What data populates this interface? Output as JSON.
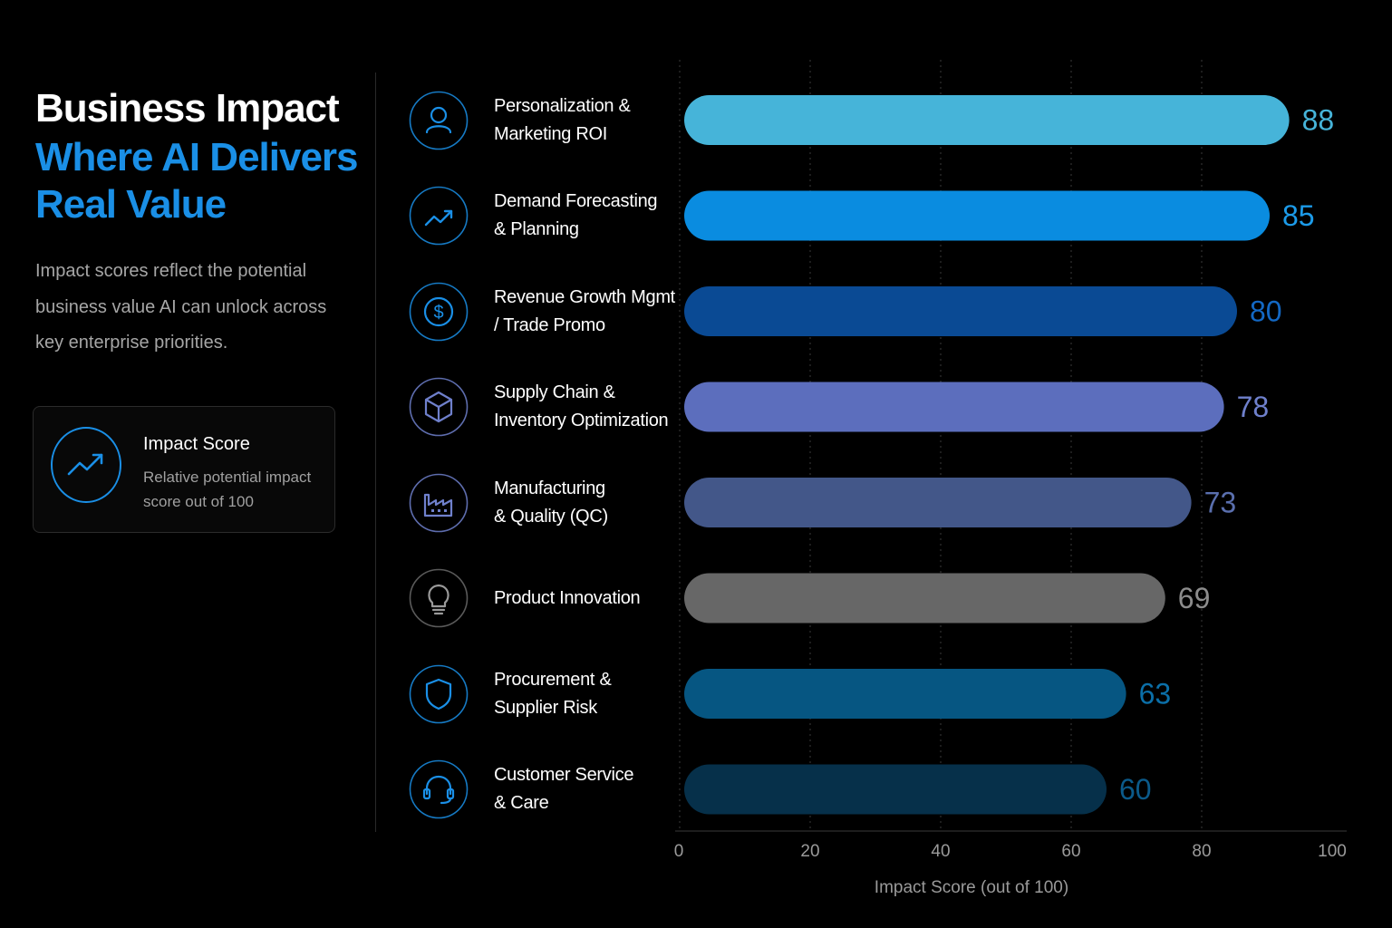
{
  "header": {
    "title_line1": "Business Impact",
    "title_line2": "Where AI Delivers",
    "title_line3": "Real Value",
    "description": "Impact scores reflect the potential business value AI can unlock across key enterprise priorities."
  },
  "legend": {
    "title": "Impact Score",
    "description": "Relative potential impact score out of 100",
    "icon": "trend-up-icon",
    "accent": "#1a8fe6"
  },
  "chart_data": {
    "type": "bar",
    "orientation": "horizontal",
    "title": "",
    "xlabel": "Impact Score (out of 100)",
    "ylabel": "",
    "xlim": [
      0,
      100
    ],
    "x_ticks": [
      0,
      20,
      40,
      60,
      80,
      100
    ],
    "grid": true,
    "categories": [
      "Personalization & Marketing ROI",
      "Demand Forecasting & Planning",
      "Revenue Growth Mgmt / Trade Promo",
      "Supply Chain & Inventory Optimization",
      "Manufacturing & Quality (QC)",
      "Product Innovation",
      "Procurement & Supplier Risk",
      "Customer Service & Care"
    ],
    "label_lines": [
      [
        "Personalization &",
        "Marketing ROI"
      ],
      [
        "Demand Forecasting",
        "& Planning"
      ],
      [
        "Revenue Growth Mgmt",
        "/ Trade Promo"
      ],
      [
        "Supply Chain &",
        "Inventory Optimization"
      ],
      [
        "Manufacturing",
        "& Quality (QC)"
      ],
      [
        "Product Innovation"
      ],
      [
        "Procurement &",
        "Supplier Risk"
      ],
      [
        "Customer Service",
        "& Care"
      ]
    ],
    "values": [
      88,
      85,
      80,
      78,
      73,
      69,
      63,
      60
    ],
    "bar_colors": [
      "#46b4d9",
      "#0a8ce0",
      "#0a4a94",
      "#5c6ebd",
      "#435789",
      "#676767",
      "#065682",
      "#06304a"
    ],
    "value_colors": [
      "#46b4d9",
      "#1c9be9",
      "#1368c4",
      "#6f80cc",
      "#5a6fae",
      "#8c8c8c",
      "#0b6fa8",
      "#0b5a8a"
    ],
    "icons": [
      "user-icon",
      "trend-up-icon",
      "dollar-icon",
      "cube-icon",
      "factory-icon",
      "lightbulb-icon",
      "shield-icon",
      "headset-icon"
    ],
    "icon_colors": [
      "#1a8fe6",
      "#1a8fe6",
      "#1a8fe6",
      "#6f80cc",
      "#6f80cc",
      "#9a9a9a",
      "#1a8fe6",
      "#1a8fe6"
    ]
  }
}
